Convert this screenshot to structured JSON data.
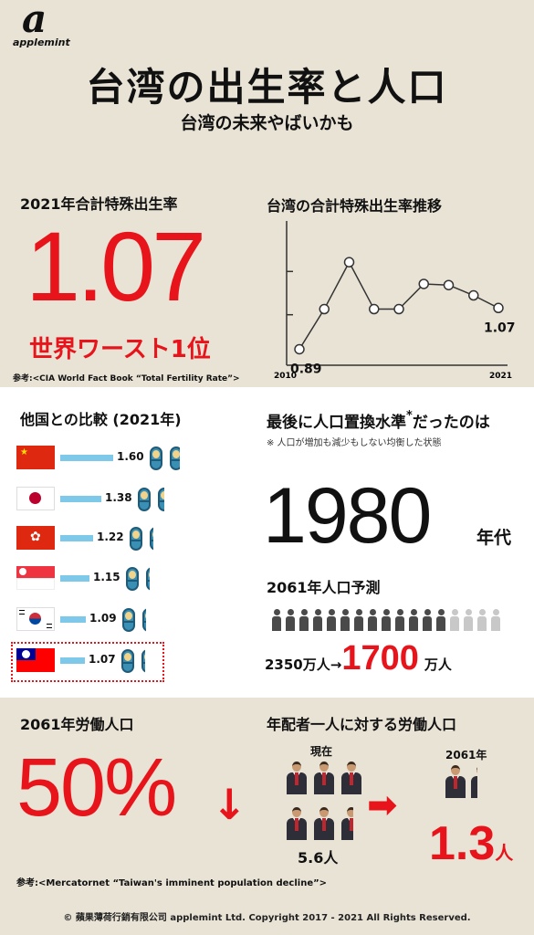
{
  "brand": {
    "logo_letter": "a",
    "name": "applemint"
  },
  "header": {
    "title": "台湾の出生率と人口",
    "subtitle": "台湾の未来やばいかも"
  },
  "tfr": {
    "heading": "2021年合計特殊出生率",
    "value": "1.07",
    "caption": "世界ワースト1位",
    "source": "参考:<CIA World Fact Book “Total Fertility Rate”>"
  },
  "trend": {
    "heading": "台湾の合計特殊出生率推移",
    "start_label": "0.89",
    "end_label": "1.07",
    "x_start": "2010",
    "x_end": "2021"
  },
  "chart_data": {
    "type": "line",
    "x": [
      "2010",
      "2011",
      "2012",
      "2013",
      "2014",
      "2015",
      "2016",
      "2017",
      "2021"
    ],
    "values": [
      0.89,
      1.065,
      1.27,
      1.065,
      1.065,
      1.175,
      1.17,
      1.125,
      1.07
    ],
    "data_labels": [
      "0.89",
      "",
      "",
      "",
      "",
      "",
      "",
      "",
      "1.07"
    ],
    "title": "台湾の合計特殊出生率推移",
    "xlabel": "",
    "ylabel": "",
    "x_ticks": [
      "2010",
      "2021"
    ],
    "ylim": [
      0.82,
      1.45
    ],
    "grid": false,
    "colors": {
      "line": "#333333",
      "marker_fill": "#ffffff",
      "marker_stroke": "#333333"
    }
  },
  "comparison": {
    "heading": "他国との比較 (2021年)",
    "countries": [
      {
        "flag": "china-flag",
        "value": 1.6,
        "label": "1.60"
      },
      {
        "flag": "japan-flag",
        "value": 1.38,
        "label": "1.38"
      },
      {
        "flag": "hongkong-flag",
        "value": 1.22,
        "label": "1.22"
      },
      {
        "flag": "singapore-flag",
        "value": 1.15,
        "label": "1.15"
      },
      {
        "flag": "korea-flag",
        "value": 1.09,
        "label": "1.09"
      },
      {
        "flag": "taiwan-flag",
        "value": 1.07,
        "label": "1.07"
      }
    ]
  },
  "replacement": {
    "heading_pre": "最後に人口置換水準",
    "heading_post": "だったのは",
    "asterisk": "*",
    "note": "※ 人口が増加も減少もしない均衡した状態",
    "year": "1980",
    "year_suffix": "年代"
  },
  "forecast": {
    "heading": "2061年人口予測",
    "from": "2350万人",
    "arrow": "→",
    "to": "1700",
    "to_unit": "万人",
    "people_total": 17,
    "people_dark": 13
  },
  "labor": {
    "heading": "2061年労働人口",
    "value": "50%",
    "arrow": "↓",
    "source": "参考:<Mercatornet “Taiwan's imminent population decline”>"
  },
  "support": {
    "heading": "年配者一人に対する労働人口",
    "now_label": "現在",
    "now_value": "5.6人",
    "future_label": "2061年",
    "future_number": "1.3",
    "future_unit": "人"
  },
  "footer": {
    "copyright": "© 蘋果薄荷行銷有限公司 applemint Ltd. Copyright 2017 - 2021 All Rights Reserved."
  },
  "colors": {
    "accent": "#e8141b",
    "background": "#e9e3d6",
    "bar": "#7ec8ea"
  }
}
